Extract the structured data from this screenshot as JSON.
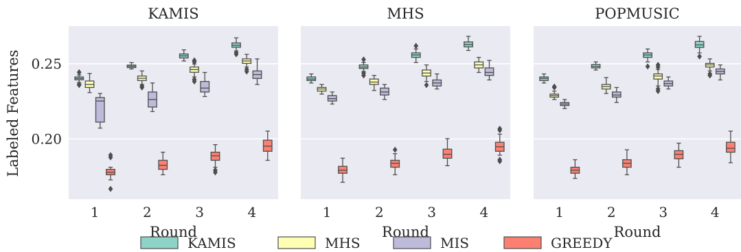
{
  "chart_data": {
    "type": "box",
    "y_axis_label": "Labeled Features",
    "y_ticks": [
      "0.25",
      "0.20"
    ],
    "y_tick_values": [
      0.25,
      0.2
    ],
    "ylim": [
      0.16,
      0.275
    ],
    "grid": true,
    "legend": {
      "placement": "bottom-center",
      "entries": [
        "KAMIS",
        "MHS",
        "MIS",
        "GREEDY"
      ]
    },
    "series_colors": {
      "KAMIS": "#8dd3c7",
      "MHS": "#ffffb3",
      "MIS": "#bebada",
      "GREEDY": "#fb8072"
    },
    "panels": [
      {
        "title": "KAMIS",
        "x_axis_label": "Round",
        "categories": [
          "1",
          "2",
          "3",
          "4"
        ],
        "series": [
          {
            "name": "KAMIS",
            "boxes": [
              {
                "whislo": 0.2375,
                "q1": 0.2393,
                "med": 0.2402,
                "q3": 0.2412,
                "whishi": 0.2425,
                "fliers": [
                  0.2443,
                  0.2363,
                  0.2358
                ]
              },
              {
                "whislo": 0.2465,
                "q1": 0.2474,
                "med": 0.2483,
                "q3": 0.2491,
                "whishi": 0.2507,
                "fliers": []
              },
              {
                "whislo": 0.2518,
                "q1": 0.2538,
                "med": 0.2552,
                "q3": 0.2565,
                "whishi": 0.2592,
                "fliers": []
              },
              {
                "whislo": 0.2585,
                "q1": 0.2609,
                "med": 0.2622,
                "q3": 0.2638,
                "whishi": 0.2672,
                "fliers": [
                  0.2563,
                  0.2573
                ]
              }
            ]
          },
          {
            "name": "MHS",
            "boxes": [
              {
                "whislo": 0.2308,
                "q1": 0.2342,
                "med": 0.2362,
                "q3": 0.2385,
                "whishi": 0.2435,
                "fliers": []
              },
              {
                "whislo": 0.2362,
                "q1": 0.2388,
                "med": 0.2403,
                "q3": 0.2418,
                "whishi": 0.2452,
                "fliers": [
                  0.2352,
                  0.2342
                ]
              },
              {
                "whislo": 0.2412,
                "q1": 0.2443,
                "med": 0.2461,
                "q3": 0.2478,
                "whishi": 0.2498,
                "fliers": [
                  0.2522,
                  0.2512,
                  0.2395,
                  0.2382
                ]
              },
              {
                "whislo": 0.2478,
                "q1": 0.2502,
                "med": 0.2518,
                "q3": 0.2532,
                "whishi": 0.2562,
                "fliers": [
                  0.2462,
                  0.2448
                ]
              }
            ]
          },
          {
            "name": "MIS",
            "boxes": [
              {
                "whislo": 0.2072,
                "q1": 0.2112,
                "med": 0.2252,
                "q3": 0.2275,
                "whishi": 0.2302,
                "fliers": []
              },
              {
                "whislo": 0.2182,
                "q1": 0.2212,
                "med": 0.2262,
                "q3": 0.2312,
                "whishi": 0.2372,
                "fliers": []
              },
              {
                "whislo": 0.2282,
                "q1": 0.2312,
                "med": 0.2338,
                "q3": 0.2382,
                "whishi": 0.2442,
                "fliers": []
              },
              {
                "whislo": 0.2362,
                "q1": 0.2402,
                "med": 0.2428,
                "q3": 0.2452,
                "whishi": 0.2532,
                "fliers": []
              }
            ]
          },
          {
            "name": "GREEDY",
            "boxes": [
              {
                "whislo": 0.1728,
                "q1": 0.1762,
                "med": 0.1778,
                "q3": 0.1798,
                "whishi": 0.1812,
                "fliers": [
                  0.1892,
                  0.1878,
                  0.1668
                ]
              },
              {
                "whislo": 0.1762,
                "q1": 0.1798,
                "med": 0.1825,
                "q3": 0.1858,
                "whishi": 0.1912,
                "fliers": []
              },
              {
                "whislo": 0.1812,
                "q1": 0.1858,
                "med": 0.1888,
                "q3": 0.1912,
                "whishi": 0.1962,
                "fliers": [
                  0.1792,
                  0.1778
                ]
              },
              {
                "whislo": 0.1858,
                "q1": 0.1918,
                "med": 0.1952,
                "q3": 0.1992,
                "whishi": 0.2052,
                "fliers": []
              }
            ]
          }
        ]
      },
      {
        "title": "MHS",
        "x_axis_label": "Round",
        "categories": [
          "1",
          "2",
          "3",
          "4"
        ],
        "series": [
          {
            "name": "KAMIS",
            "boxes": [
              {
                "whislo": 0.2372,
                "q1": 0.2388,
                "med": 0.2398,
                "q3": 0.2412,
                "whishi": 0.2432,
                "fliers": []
              },
              {
                "whislo": 0.2448,
                "q1": 0.2468,
                "med": 0.2478,
                "q3": 0.2492,
                "whishi": 0.2508,
                "fliers": [
                  0.2528,
                  0.2438,
                  0.2422
                ]
              },
              {
                "whislo": 0.2508,
                "q1": 0.2542,
                "med": 0.2558,
                "q3": 0.2572,
                "whishi": 0.2598,
                "fliers": [
                  0.2618
                ]
              },
              {
                "whislo": 0.2588,
                "q1": 0.2612,
                "med": 0.2628,
                "q3": 0.2645,
                "whishi": 0.2682,
                "fliers": []
              }
            ]
          },
          {
            "name": "MHS",
            "boxes": [
              {
                "whislo": 0.2298,
                "q1": 0.2318,
                "med": 0.2332,
                "q3": 0.2342,
                "whishi": 0.2362,
                "fliers": []
              },
              {
                "whislo": 0.2322,
                "q1": 0.2362,
                "med": 0.2378,
                "q3": 0.2398,
                "whishi": 0.2422,
                "fliers": []
              },
              {
                "whislo": 0.2382,
                "q1": 0.2418,
                "med": 0.2438,
                "q3": 0.2458,
                "whishi": 0.2492,
                "fliers": [
                  0.2358
                ]
              },
              {
                "whislo": 0.2442,
                "q1": 0.2472,
                "med": 0.2492,
                "q3": 0.2512,
                "whishi": 0.2542,
                "fliers": []
              }
            ]
          },
          {
            "name": "MIS",
            "boxes": [
              {
                "whislo": 0.2232,
                "q1": 0.2252,
                "med": 0.2268,
                "q3": 0.2288,
                "whishi": 0.2312,
                "fliers": []
              },
              {
                "whislo": 0.2262,
                "q1": 0.2292,
                "med": 0.2312,
                "q3": 0.2338,
                "whishi": 0.2362,
                "fliers": []
              },
              {
                "whislo": 0.2332,
                "q1": 0.2352,
                "med": 0.2372,
                "q3": 0.2392,
                "whishi": 0.2432,
                "fliers": []
              },
              {
                "whislo": 0.2392,
                "q1": 0.2422,
                "med": 0.2442,
                "q3": 0.2472,
                "whishi": 0.2522,
                "fliers": []
              }
            ]
          },
          {
            "name": "GREEDY",
            "boxes": [
              {
                "whislo": 0.1712,
                "q1": 0.1772,
                "med": 0.1792,
                "q3": 0.1818,
                "whishi": 0.1872,
                "fliers": []
              },
              {
                "whislo": 0.1762,
                "q1": 0.1812,
                "med": 0.1838,
                "q3": 0.1858,
                "whishi": 0.1902,
                "fliers": [
                  0.1928
                ]
              },
              {
                "whislo": 0.1822,
                "q1": 0.1872,
                "med": 0.1898,
                "q3": 0.1932,
                "whishi": 0.2002,
                "fliers": []
              },
              {
                "whislo": 0.1892,
                "q1": 0.1918,
                "med": 0.1948,
                "q3": 0.1978,
                "whishi": 0.2032,
                "fliers": [
                  0.2068,
                  0.2058,
                  0.1862,
                  0.1852
                ]
              }
            ]
          }
        ]
      },
      {
        "title": "POPMUSIC",
        "x_axis_label": "Round",
        "categories": [
          "1",
          "2",
          "3",
          "4"
        ],
        "series": [
          {
            "name": "KAMIS",
            "boxes": [
              {
                "whislo": 0.2372,
                "q1": 0.2388,
                "med": 0.2402,
                "q3": 0.2412,
                "whishi": 0.2432,
                "fliers": []
              },
              {
                "whislo": 0.2458,
                "q1": 0.2472,
                "med": 0.2482,
                "q3": 0.2495,
                "whishi": 0.2512,
                "fliers": []
              },
              {
                "whislo": 0.2512,
                "q1": 0.2542,
                "med": 0.2558,
                "q3": 0.2572,
                "whishi": 0.2598,
                "fliers": [
                  0.2482
                ]
              },
              {
                "whislo": 0.2572,
                "q1": 0.2608,
                "med": 0.2625,
                "q3": 0.2648,
                "whishi": 0.2682,
                "fliers": [
                  0.2548
                ]
              }
            ]
          },
          {
            "name": "MHS",
            "boxes": [
              {
                "whislo": 0.2262,
                "q1": 0.2278,
                "med": 0.2288,
                "q3": 0.2298,
                "whishi": 0.2318,
                "fliers": [
                  0.2348,
                  0.2342
                ]
              },
              {
                "whislo": 0.2302,
                "q1": 0.2332,
                "med": 0.2348,
                "q3": 0.2362,
                "whishi": 0.2408,
                "fliers": []
              },
              {
                "whislo": 0.2352,
                "q1": 0.2398,
                "med": 0.2418,
                "q3": 0.2432,
                "whishi": 0.2462,
                "fliers": [
                  0.2492,
                  0.2478,
                  0.2332,
                  0.2318
                ]
              },
              {
                "whislo": 0.2452,
                "q1": 0.2478,
                "med": 0.2492,
                "q3": 0.2502,
                "whishi": 0.2532,
                "fliers": [
                  0.2432,
                  0.2422
                ]
              }
            ]
          },
          {
            "name": "MIS",
            "boxes": [
              {
                "whislo": 0.2202,
                "q1": 0.2222,
                "med": 0.2232,
                "q3": 0.2242,
                "whishi": 0.2262,
                "fliers": []
              },
              {
                "whislo": 0.2242,
                "q1": 0.2278,
                "med": 0.2292,
                "q3": 0.2312,
                "whishi": 0.2342,
                "fliers": []
              },
              {
                "whislo": 0.2332,
                "q1": 0.2352,
                "med": 0.2368,
                "q3": 0.2385,
                "whishi": 0.2412,
                "fliers": []
              },
              {
                "whislo": 0.2392,
                "q1": 0.2432,
                "med": 0.2448,
                "q3": 0.2465,
                "whishi": 0.2492,
                "fliers": []
              }
            ]
          },
          {
            "name": "GREEDY",
            "boxes": [
              {
                "whislo": 0.1738,
                "q1": 0.1772,
                "med": 0.1792,
                "q3": 0.1812,
                "whishi": 0.1862,
                "fliers": []
              },
              {
                "whislo": 0.1762,
                "q1": 0.1812,
                "med": 0.1838,
                "q3": 0.1862,
                "whishi": 0.1928,
                "fliers": []
              },
              {
                "whislo": 0.1812,
                "q1": 0.1868,
                "med": 0.1898,
                "q3": 0.1922,
                "whishi": 0.1972,
                "fliers": []
              },
              {
                "whislo": 0.1842,
                "q1": 0.1912,
                "med": 0.1938,
                "q3": 0.1978,
                "whishi": 0.2052,
                "fliers": []
              }
            ]
          }
        ]
      }
    ]
  }
}
